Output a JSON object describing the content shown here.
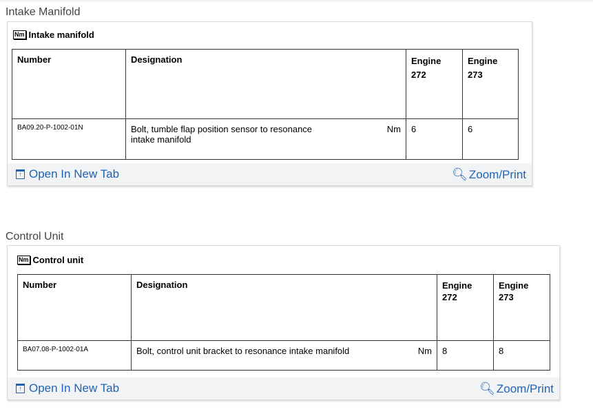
{
  "sections": [
    {
      "title": "Intake Manifold",
      "card_title": "Intake manifold",
      "icon": "Nm",
      "headers": [
        "Number",
        "Designation",
        "Engine 272",
        "Engine 273"
      ],
      "row": {
        "number": "BA09.20-P-1002-01N",
        "designation": "Bolt, tumble flap position sensor to resonance intake manifold",
        "unit": "Nm",
        "e272": "6",
        "e273": "6"
      },
      "open_tab": "Open In New Tab",
      "zoom_print": "Zoom/Print"
    },
    {
      "title": "Control Unit",
      "card_title": "Control unit",
      "icon": "Nm",
      "headers": [
        "Number",
        "Designation",
        "Engine 272",
        "Engine 273"
      ],
      "row": {
        "number": "BA07.08-P-1002-01A",
        "designation": "Bolt, control unit bracket to resonance intake manifold",
        "unit": "Nm",
        "e272": "8",
        "e273": "8"
      },
      "open_tab": "Open In New Tab",
      "zoom_print": "Zoom/Print"
    }
  ],
  "colors": {
    "link": "#1f63b5",
    "footer_bg": "#f2f3f5"
  }
}
